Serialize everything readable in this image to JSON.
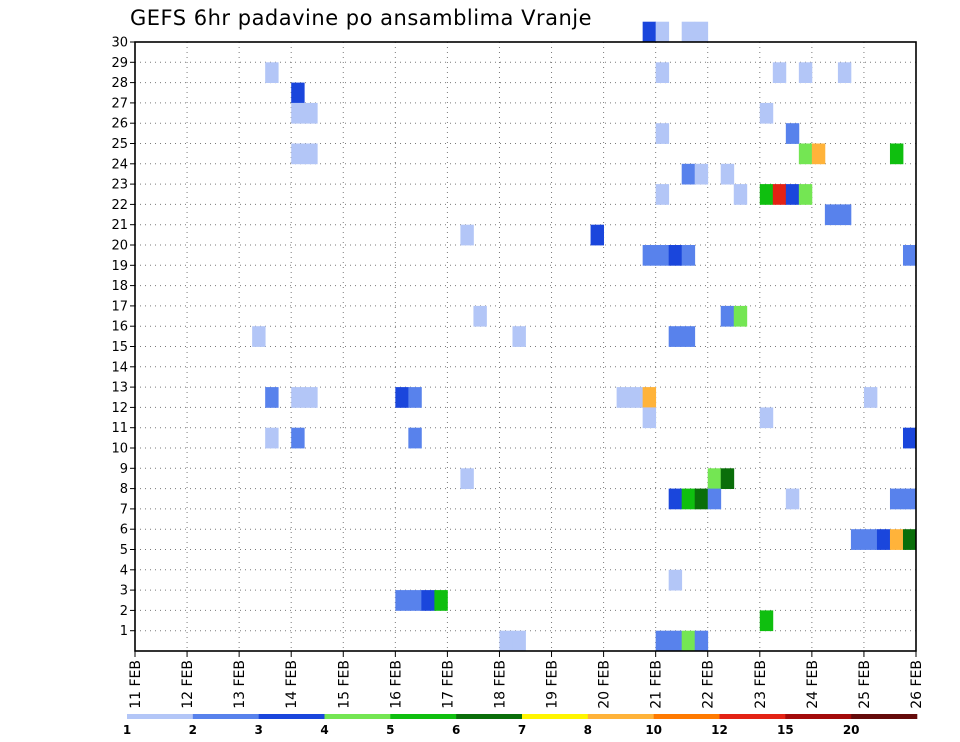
{
  "chart_data": {
    "type": "heatmap",
    "title": "GEFS 6hr padavine po ansamblima Vranje",
    "xlabel": "",
    "ylabel": "",
    "x_tick_labels": [
      "11 FEB",
      "12 FEB",
      "13 FEB",
      "14 FEB",
      "15 FEB",
      "16 FEB",
      "17 FEB",
      "18 FEB",
      "19 FEB",
      "20 FEB",
      "21 FEB",
      "22 FEB",
      "23 FEB",
      "24 FEB",
      "25 FEB",
      "26 FEB"
    ],
    "x_range_days": [
      0,
      15
    ],
    "y_tick_labels": [
      "1",
      "2",
      "3",
      "4",
      "5",
      "6",
      "7",
      "8",
      "9",
      "10",
      "11",
      "12",
      "13",
      "14",
      "15",
      "16",
      "17",
      "18",
      "19",
      "20",
      "21",
      "22",
      "23",
      "24",
      "25",
      "26",
      "27",
      "28",
      "29",
      "30"
    ],
    "y_range": [
      0,
      30
    ],
    "grid": true,
    "grid_style": "dotted",
    "color_scale": {
      "colors": [
        "#b3c6f7",
        "#5882ec",
        "#1a46dc",
        "#74e653",
        "#0fbf0f",
        "#0a6e0a",
        "#fff500",
        "#ffb33a",
        "#ff7a00",
        "#e32214",
        "#a30a0a",
        "#640a0a"
      ],
      "labels": [
        "1",
        "2",
        "3",
        "4",
        "5",
        "6",
        "7",
        "8",
        "10",
        "12",
        "15",
        "20"
      ]
    },
    "cells": [
      {
        "member": 30,
        "day": 9.75,
        "bin": 2
      },
      {
        "member": 30,
        "day": 10.0,
        "bin": 0
      },
      {
        "member": 30,
        "day": 10.5,
        "bin": 0
      },
      {
        "member": 30,
        "day": 10.75,
        "bin": 0
      },
      {
        "member": 28,
        "day": 2.5,
        "bin": 0
      },
      {
        "member": 28,
        "day": 10.0,
        "bin": 0
      },
      {
        "member": 28,
        "day": 12.25,
        "bin": 0
      },
      {
        "member": 28,
        "day": 12.75,
        "bin": 0
      },
      {
        "member": 28,
        "day": 13.5,
        "bin": 0
      },
      {
        "member": 27,
        "day": 3.0,
        "bin": 2
      },
      {
        "member": 26,
        "day": 3.0,
        "bin": 0
      },
      {
        "member": 26,
        "day": 3.25,
        "bin": 0
      },
      {
        "member": 26,
        "day": 12.0,
        "bin": 0
      },
      {
        "member": 25,
        "day": 10.0,
        "bin": 0
      },
      {
        "member": 25,
        "day": 12.5,
        "bin": 1
      },
      {
        "member": 24,
        "day": 3.0,
        "bin": 0
      },
      {
        "member": 24,
        "day": 3.25,
        "bin": 0
      },
      {
        "member": 24,
        "day": 12.75,
        "bin": 3
      },
      {
        "member": 24,
        "day": 13.0,
        "bin": 7
      },
      {
        "member": 24,
        "day": 14.5,
        "bin": 4
      },
      {
        "member": 23,
        "day": 10.5,
        "bin": 1
      },
      {
        "member": 23,
        "day": 10.75,
        "bin": 0
      },
      {
        "member": 23,
        "day": 11.25,
        "bin": 0
      },
      {
        "member": 22,
        "day": 10.0,
        "bin": 0
      },
      {
        "member": 22,
        "day": 11.5,
        "bin": 0
      },
      {
        "member": 22,
        "day": 12.0,
        "bin": 4
      },
      {
        "member": 22,
        "day": 12.25,
        "bin": 9
      },
      {
        "member": 22,
        "day": 12.5,
        "bin": 2
      },
      {
        "member": 22,
        "day": 12.75,
        "bin": 3
      },
      {
        "member": 21,
        "day": 13.25,
        "bin": 1
      },
      {
        "member": 21,
        "day": 13.5,
        "bin": 1
      },
      {
        "member": 20,
        "day": 6.25,
        "bin": 0
      },
      {
        "member": 20,
        "day": 8.75,
        "bin": 2
      },
      {
        "member": 19,
        "day": 9.75,
        "bin": 1
      },
      {
        "member": 19,
        "day": 10.0,
        "bin": 1
      },
      {
        "member": 19,
        "day": 10.25,
        "bin": 2
      },
      {
        "member": 19,
        "day": 10.5,
        "bin": 1
      },
      {
        "member": 19,
        "day": 14.75,
        "bin": 1
      },
      {
        "member": 16,
        "day": 6.5,
        "bin": 0
      },
      {
        "member": 16,
        "day": 11.25,
        "bin": 1
      },
      {
        "member": 16,
        "day": 11.5,
        "bin": 3
      },
      {
        "member": 15,
        "day": 2.25,
        "bin": 0
      },
      {
        "member": 15,
        "day": 7.25,
        "bin": 0
      },
      {
        "member": 15,
        "day": 10.25,
        "bin": 1
      },
      {
        "member": 15,
        "day": 10.5,
        "bin": 1
      },
      {
        "member": 12,
        "day": 2.5,
        "bin": 1
      },
      {
        "member": 12,
        "day": 3.0,
        "bin": 0
      },
      {
        "member": 12,
        "day": 3.25,
        "bin": 0
      },
      {
        "member": 12,
        "day": 5.0,
        "bin": 2
      },
      {
        "member": 12,
        "day": 5.25,
        "bin": 1
      },
      {
        "member": 12,
        "day": 9.25,
        "bin": 0
      },
      {
        "member": 12,
        "day": 9.5,
        "bin": 0
      },
      {
        "member": 12,
        "day": 9.75,
        "bin": 7
      },
      {
        "member": 12,
        "day": 14.0,
        "bin": 0
      },
      {
        "member": 11,
        "day": 9.75,
        "bin": 0
      },
      {
        "member": 11,
        "day": 12.0,
        "bin": 0
      },
      {
        "member": 10,
        "day": 2.5,
        "bin": 0
      },
      {
        "member": 10,
        "day": 3.0,
        "bin": 1
      },
      {
        "member": 10,
        "day": 5.25,
        "bin": 1
      },
      {
        "member": 10,
        "day": 14.75,
        "bin": 2
      },
      {
        "member": 8,
        "day": 6.25,
        "bin": 0
      },
      {
        "member": 8,
        "day": 11.0,
        "bin": 3
      },
      {
        "member": 8,
        "day": 11.25,
        "bin": 5
      },
      {
        "member": 7,
        "day": 10.25,
        "bin": 2
      },
      {
        "member": 7,
        "day": 10.5,
        "bin": 4
      },
      {
        "member": 7,
        "day": 10.75,
        "bin": 5
      },
      {
        "member": 7,
        "day": 11.0,
        "bin": 1
      },
      {
        "member": 7,
        "day": 12.5,
        "bin": 0
      },
      {
        "member": 7,
        "day": 14.5,
        "bin": 1
      },
      {
        "member": 7,
        "day": 14.75,
        "bin": 1
      },
      {
        "member": 5,
        "day": 13.75,
        "bin": 1
      },
      {
        "member": 5,
        "day": 14.0,
        "bin": 1
      },
      {
        "member": 5,
        "day": 14.25,
        "bin": 2
      },
      {
        "member": 5,
        "day": 14.5,
        "bin": 7
      },
      {
        "member": 5,
        "day": 14.75,
        "bin": 5
      },
      {
        "member": 3,
        "day": 10.25,
        "bin": 0
      },
      {
        "member": 2,
        "day": 5.0,
        "bin": 1
      },
      {
        "member": 2,
        "day": 5.25,
        "bin": 1
      },
      {
        "member": 2,
        "day": 5.5,
        "bin": 2
      },
      {
        "member": 2,
        "day": 5.75,
        "bin": 4
      },
      {
        "member": 1,
        "day": 12.0,
        "bin": 4
      },
      {
        "member": 0,
        "day": 7.0,
        "bin": 0
      },
      {
        "member": 0,
        "day": 7.25,
        "bin": 0
      },
      {
        "member": 0,
        "day": 10.0,
        "bin": 1
      },
      {
        "member": 0,
        "day": 10.25,
        "bin": 1
      },
      {
        "member": 0,
        "day": 10.5,
        "bin": 3
      },
      {
        "member": 0,
        "day": 10.75,
        "bin": 1
      }
    ]
  }
}
